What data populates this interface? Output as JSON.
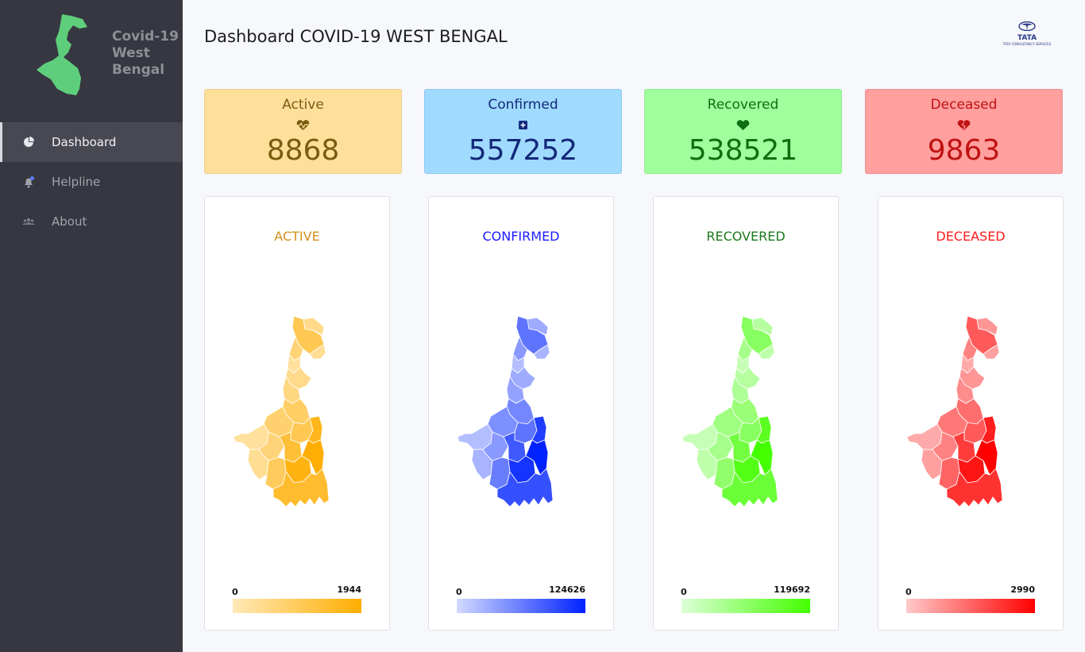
{
  "sidebar": {
    "brand_title": "Covid-19 West Bengal",
    "items": [
      {
        "label": "Dashboard",
        "icon": "pie-chart-icon",
        "active": true
      },
      {
        "label": "Helpline",
        "icon": "bell-icon",
        "active": false
      },
      {
        "label": "About",
        "icon": "users-icon",
        "active": false
      }
    ]
  },
  "header": {
    "title": "Dashboard COVID-19 WEST BENGAL",
    "logo_name": "TATA",
    "logo_sub": "TATA CONSULTANCY SERVICES"
  },
  "stats": [
    {
      "label": "Active",
      "value": "8868",
      "icon": "heartbeat-icon",
      "bg": "#ffe09b",
      "fg": "#7a5c10"
    },
    {
      "label": "Confirmed",
      "value": "557252",
      "icon": "plus-square-icon",
      "bg": "#a0dbff",
      "fg": "#14287a"
    },
    {
      "label": "Recovered",
      "value": "538521",
      "icon": "heart-icon",
      "bg": "#a0ff9d",
      "fg": "#0e6e12"
    },
    {
      "label": "Deceased",
      "value": "9863",
      "icon": "broken-heart-icon",
      "bg": "#ff9f9e",
      "fg": "#c01212"
    }
  ],
  "maps": [
    {
      "title": "ACTIVE",
      "title_color": "#d4901c",
      "legend_min": "0",
      "legend_max": "1944",
      "color_low": "#ffe9b8",
      "color_high": "#ffad00"
    },
    {
      "title": "CONFIRMED",
      "title_color": "#1a1aff",
      "legend_min": "0",
      "legend_max": "124626",
      "color_low": "#d2d9ff",
      "color_high": "#0022ff"
    },
    {
      "title": "RECOVERED",
      "title_color": "#1c7a1c",
      "legend_min": "0",
      "legend_max": "119692",
      "color_low": "#dcffd6",
      "color_high": "#44ff00"
    },
    {
      "title": "DECEASED",
      "title_color": "#ff1a1a",
      "legend_min": "0",
      "legend_max": "2990",
      "color_low": "#ffc8c8",
      "color_high": "#ff0000"
    }
  ]
}
